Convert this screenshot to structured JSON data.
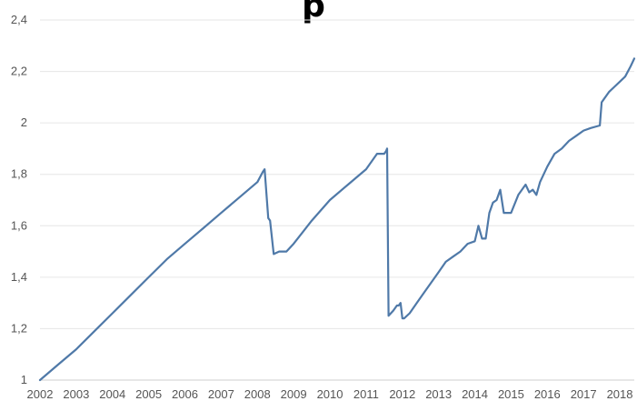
{
  "chart_data": {
    "type": "line",
    "title_fragment": "p",
    "xlabel": "",
    "ylabel": "",
    "ylim": [
      1,
      2.4
    ],
    "xlim": [
      2002,
      2018.4
    ],
    "x_ticks": [
      "2002",
      "2003",
      "2004",
      "2005",
      "2006",
      "2007",
      "2008",
      "2009",
      "2010",
      "2011",
      "2012",
      "2013",
      "2014",
      "2015",
      "2016",
      "2017",
      "2018"
    ],
    "y_ticks": [
      {
        "value": 1,
        "label": "1"
      },
      {
        "value": 1.2,
        "label": "1,2"
      },
      {
        "value": 1.4,
        "label": "1,4"
      },
      {
        "value": 1.6,
        "label": "1,6"
      },
      {
        "value": 1.8,
        "label": "1,8"
      },
      {
        "value": 2,
        "label": "2"
      },
      {
        "value": 2.2,
        "label": "2,2"
      },
      {
        "value": 2.4,
        "label": "2,4"
      }
    ],
    "grid": true,
    "legend": "none",
    "colors": {
      "line": "#4f79a8",
      "grid": "#e6e6e6"
    },
    "series": [
      {
        "x": [
          2002.0,
          2002.5,
          2003.0,
          2003.5,
          2004.0,
          2004.5,
          2005.0,
          2005.5,
          2006.0,
          2006.5,
          2007.0,
          2007.5,
          2008.0,
          2008.15,
          2008.2,
          2008.3,
          2008.35,
          2008.45,
          2008.6,
          2008.8,
          2009.0,
          2009.5,
          2010.0,
          2010.5,
          2011.0,
          2011.3,
          2011.5,
          2011.55,
          2011.58,
          2011.62,
          2011.75,
          2011.85,
          2011.9,
          2011.95,
          2012.0,
          2012.05,
          2012.2,
          2012.4,
          2012.6,
          2012.8,
          2013.0,
          2013.2,
          2013.4,
          2013.6,
          2013.8,
          2014.0,
          2014.1,
          2014.2,
          2014.3,
          2014.4,
          2014.5,
          2014.6,
          2014.7,
          2014.8,
          2015.0,
          2015.2,
          2015.4,
          2015.5,
          2015.6,
          2015.7,
          2015.8,
          2015.9,
          2016.0,
          2016.2,
          2016.4,
          2016.6,
          2016.8,
          2017.0,
          2017.2,
          2017.45,
          2017.5,
          2017.55,
          2017.7,
          2017.85,
          2018.0,
          2018.15,
          2018.3,
          2018.4
        ],
        "y": [
          1.0,
          1.06,
          1.12,
          1.19,
          1.26,
          1.33,
          1.4,
          1.47,
          1.53,
          1.59,
          1.65,
          1.71,
          1.77,
          1.81,
          1.82,
          1.63,
          1.62,
          1.49,
          1.5,
          1.5,
          1.53,
          1.62,
          1.7,
          1.76,
          1.82,
          1.88,
          1.88,
          1.89,
          1.9,
          1.25,
          1.27,
          1.29,
          1.29,
          1.3,
          1.24,
          1.24,
          1.26,
          1.3,
          1.34,
          1.38,
          1.42,
          1.46,
          1.48,
          1.5,
          1.53,
          1.54,
          1.6,
          1.55,
          1.55,
          1.65,
          1.69,
          1.7,
          1.74,
          1.65,
          1.65,
          1.72,
          1.76,
          1.73,
          1.74,
          1.72,
          1.77,
          1.8,
          1.83,
          1.88,
          1.9,
          1.93,
          1.95,
          1.97,
          1.98,
          1.99,
          2.08,
          2.09,
          2.12,
          2.14,
          2.16,
          2.18,
          2.22,
          2.25
        ]
      }
    ]
  }
}
